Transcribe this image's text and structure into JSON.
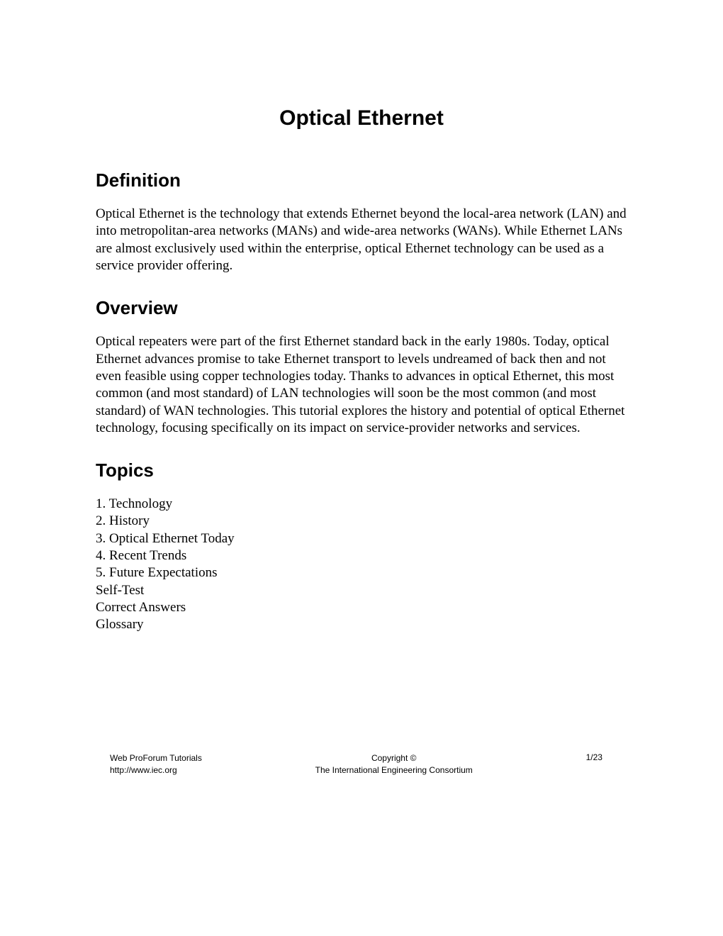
{
  "title": "Optical Ethernet",
  "sections": {
    "definition": {
      "heading": "Definition",
      "body": "Optical Ethernet is the technology that extends Ethernet beyond the local-area network (LAN) and into metropolitan-area networks (MANs) and wide-area networks (WANs). While Ethernet LANs are almost exclusively used within the enterprise, optical Ethernet technology can be used as a service provider offering."
    },
    "overview": {
      "heading": "Overview",
      "body": "Optical repeaters were part of the first Ethernet standard back in the early 1980s. Today, optical Ethernet advances promise to take Ethernet transport to levels undreamed of back then and not even feasible using copper technologies today. Thanks to advances in optical Ethernet, this most common (and most standard) of LAN technologies will soon be the most common (and most standard) of WAN technologies. This tutorial explores the history and potential of optical Ethernet technology, focusing specifically on its impact on service-provider networks and services."
    },
    "topics": {
      "heading": "Topics",
      "items": [
        "1. Technology",
        "2. History",
        "3. Optical Ethernet Today",
        "4. Recent Trends",
        "5. Future Expectations",
        "Self-Test",
        "Correct Answers",
        "Glossary"
      ]
    }
  },
  "footer": {
    "left_line1": "Web ProForum Tutorials",
    "left_line2": "http://www.iec.org",
    "center_line1": "Copyright ©",
    "center_line2": "The International Engineering Consortium",
    "page_number": "1/23"
  }
}
